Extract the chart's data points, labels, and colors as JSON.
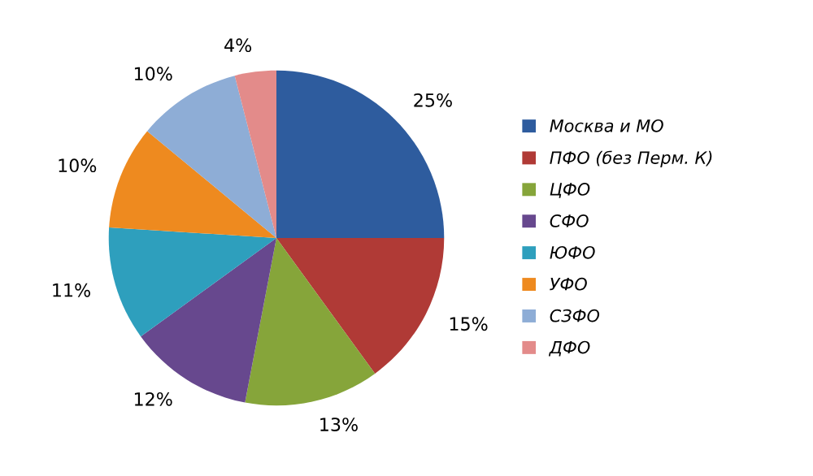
{
  "chart_data": {
    "type": "pie",
    "categories": [
      "Москва и МО",
      "ПФО (без Перм. К)",
      "ЦФО",
      "СФО",
      "ЮФО",
      "УФО",
      "СЗФО",
      "ДФО"
    ],
    "values": [
      25,
      15,
      13,
      12,
      11,
      10,
      10,
      4
    ],
    "value_labels": [
      "25%",
      "15%",
      "13%",
      "12%",
      "11%",
      "10%",
      "10%",
      "4%"
    ],
    "colors": [
      "#2e5c9e",
      "#b03a36",
      "#86a53a",
      "#67488e",
      "#2e9fbd",
      "#ee8a1f",
      "#8eadd6",
      "#e38b8a"
    ],
    "legend": "right"
  }
}
